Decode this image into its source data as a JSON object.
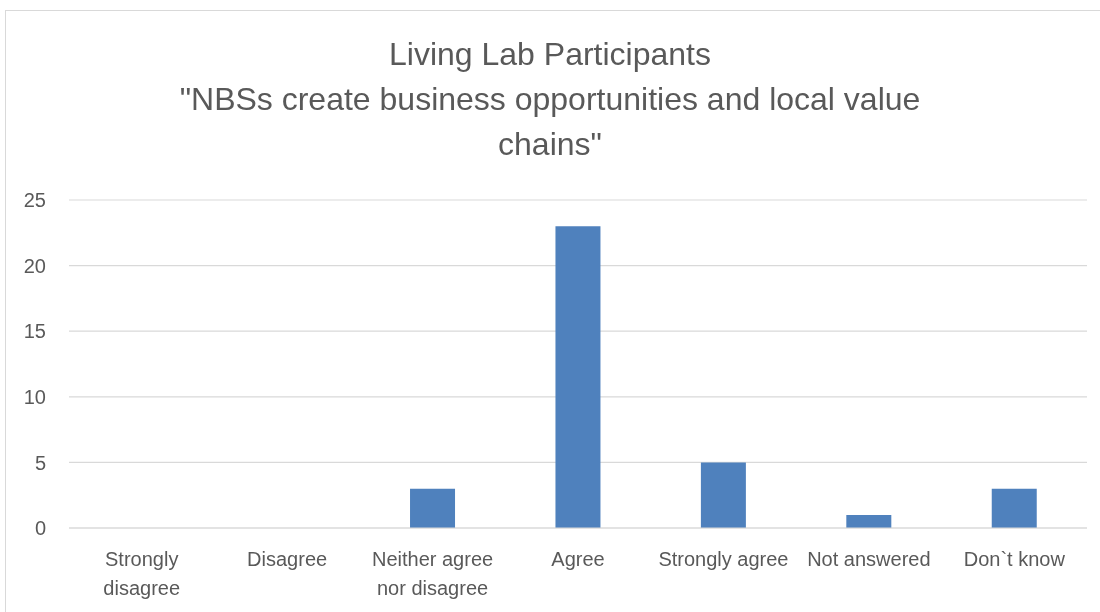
{
  "chart_data": {
    "type": "bar",
    "title": "Living Lab Participants",
    "subtitle": "\"NBSs create business opportunities and local value chains\"",
    "categories": [
      "Strongly disagree",
      "Disagree",
      "Neither agree nor disagree",
      "Agree",
      "Strongly agree",
      "Not answered",
      "Don`t know"
    ],
    "values": [
      0,
      0,
      3,
      23,
      5,
      1,
      3
    ],
    "color": "#4f81bd",
    "ylim": [
      0,
      25
    ],
    "yticks": [
      0,
      5,
      10,
      15,
      20,
      25
    ],
    "grid": "y"
  }
}
